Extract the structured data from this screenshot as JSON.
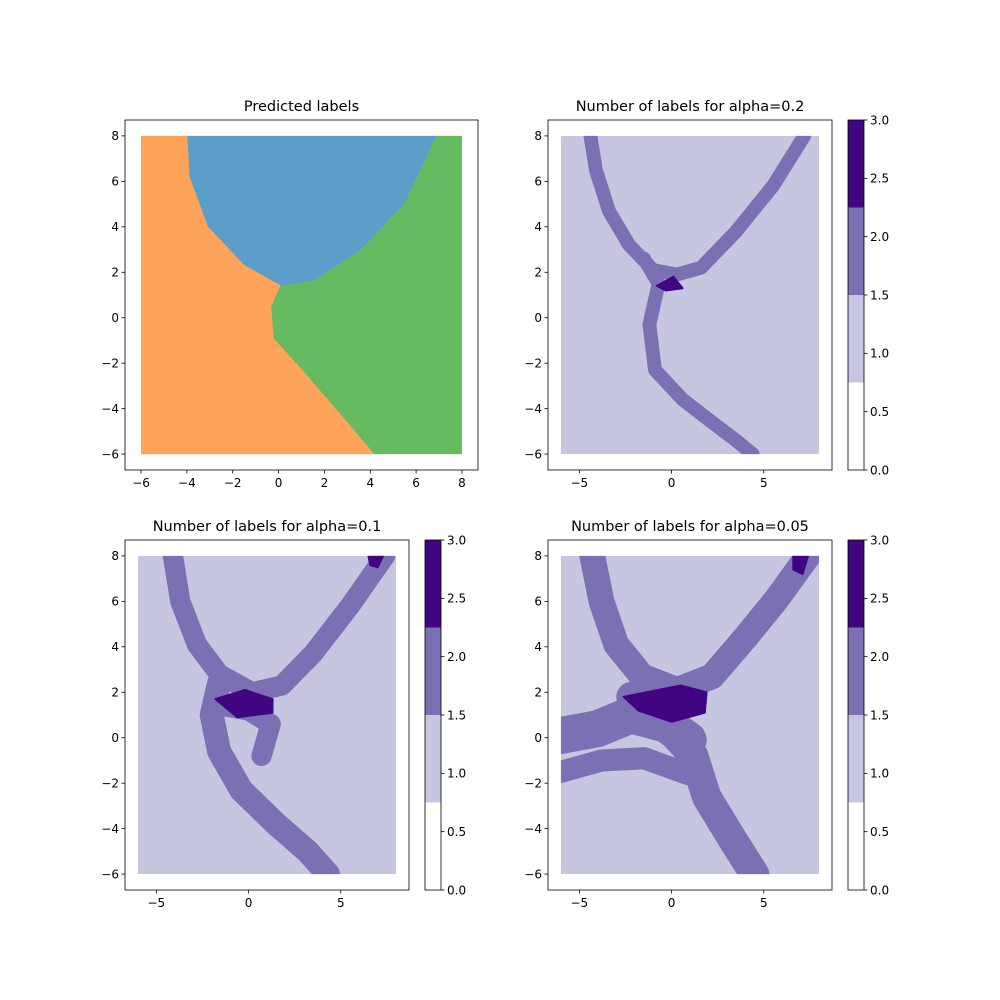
{
  "figure": {
    "background": "#ffffff"
  },
  "chart_data": [
    {
      "type": "heatmap",
      "title": "Predicted labels",
      "xlim": [
        -6.7,
        8.7
      ],
      "ylim": [
        -6.7,
        8.7
      ],
      "xticks": [
        -6,
        -4,
        -2,
        0,
        2,
        4,
        6,
        8
      ],
      "yticks": [
        -6,
        -4,
        -2,
        0,
        2,
        4,
        6,
        8
      ],
      "grid": false,
      "legend": "none",
      "data_extent": {
        "x": [
          -6,
          8
        ],
        "y": [
          -6,
          8
        ]
      },
      "regions": [
        {
          "label": 0,
          "color": "#5b9ec9",
          "boundary": [
            [
              -4.0,
              8
            ],
            [
              -3.9,
              6.2
            ],
            [
              -3.1,
              4.0
            ],
            [
              -1.5,
              2.3
            ],
            [
              0.1,
              1.4
            ],
            [
              1.5,
              1.6
            ],
            [
              3.5,
              2.9
            ],
            [
              5.5,
              5.0
            ],
            [
              6.9,
              8
            ]
          ]
        },
        {
          "label": 1,
          "color": "#fda35a",
          "boundary": [
            [
              -6,
              -6
            ],
            [
              -6,
              8
            ],
            [
              -4.0,
              8
            ],
            [
              -3.9,
              6.2
            ],
            [
              -3.1,
              4.0
            ],
            [
              -1.5,
              2.3
            ],
            [
              0.1,
              1.4
            ],
            [
              -0.3,
              0.5
            ],
            [
              -0.2,
              -0.9
            ],
            [
              0.8,
              -2.0
            ],
            [
              2.6,
              -4.1
            ],
            [
              4.2,
              -6
            ]
          ]
        },
        {
          "label": 2,
          "color": "#66bb62",
          "boundary": [
            [
              8,
              8
            ],
            [
              8,
              -6
            ],
            [
              4.2,
              -6
            ],
            [
              2.6,
              -4.1
            ],
            [
              0.8,
              -2.0
            ],
            [
              -0.2,
              -0.9
            ],
            [
              -0.3,
              0.5
            ],
            [
              0.1,
              1.4
            ],
            [
              1.5,
              1.6
            ],
            [
              3.5,
              2.9
            ],
            [
              5.5,
              5.0
            ],
            [
              6.9,
              8
            ]
          ]
        }
      ]
    },
    {
      "type": "heatmap",
      "title": "Number of labels for alpha=0.2",
      "xlim": [
        -6.7,
        8.7
      ],
      "ylim": [
        -6.7,
        8.7
      ],
      "xticks": [
        -5,
        0,
        5
      ],
      "yticks": [
        -6,
        -4,
        -2,
        0,
        2,
        4,
        6,
        8
      ],
      "grid": false,
      "data_extent": {
        "x": [
          -6,
          8
        ],
        "y": [
          -6,
          8
        ]
      },
      "background_value": 1,
      "bands": [
        {
          "value": 2,
          "width": 0.75,
          "path": [
            [
              -4.4,
              8
            ],
            [
              -4.1,
              6.5
            ],
            [
              -3.4,
              4.7
            ],
            [
              -2.3,
              3.2
            ],
            [
              -1.0,
              2.1
            ],
            [
              0.3,
              1.9
            ],
            [
              1.6,
              2.2
            ],
            [
              3.5,
              3.8
            ],
            [
              5.5,
              5.8
            ],
            [
              7.2,
              8
            ]
          ]
        },
        {
          "value": 2,
          "width": 0.75,
          "path": [
            [
              -1.5,
              2.6
            ],
            [
              -0.7,
              1.5
            ],
            [
              -1.2,
              -0.3
            ],
            [
              -0.9,
              -2.3
            ],
            [
              0.6,
              -3.6
            ],
            [
              2.2,
              -4.6
            ],
            [
              3.5,
              -5.4
            ],
            [
              4.4,
              -6
            ]
          ]
        }
      ],
      "spots": [
        {
          "value": 3,
          "polygon": [
            [
              -0.8,
              1.4
            ],
            [
              0.1,
              1.8
            ],
            [
              0.6,
              1.3
            ],
            [
              -0.3,
              1.2
            ]
          ]
        }
      ],
      "colorbar": {
        "ticks": [
          0.0,
          0.5,
          1.0,
          1.5,
          2.0,
          2.5,
          3.0
        ],
        "tick_labels": [
          "0.0",
          "0.5",
          "1.0",
          "1.5",
          "2.0",
          "2.5",
          "3.0"
        ],
        "levels": [
          {
            "range": [
              0,
              0.75
            ],
            "value": 0,
            "color": "#ffffff"
          },
          {
            "range": [
              0.75,
              1.5
            ],
            "value": 1,
            "color": "#c6c6e1"
          },
          {
            "range": [
              1.5,
              2.25
            ],
            "value": 2,
            "color": "#7b70b3"
          },
          {
            "range": [
              2.25,
              3.0
            ],
            "value": 3,
            "color": "#410582"
          }
        ]
      }
    },
    {
      "type": "heatmap",
      "title": "Number of labels for alpha=0.1",
      "xlim": [
        -6.7,
        8.7
      ],
      "ylim": [
        -6.7,
        8.7
      ],
      "xticks": [
        -5,
        0,
        5
      ],
      "yticks": [
        -6,
        -4,
        -2,
        0,
        2,
        4,
        6,
        8
      ],
      "grid": false,
      "data_extent": {
        "x": [
          -6,
          8
        ],
        "y": [
          -6,
          8
        ]
      },
      "background_value": 1,
      "bands": [
        {
          "value": 2,
          "width": 1.1,
          "path": [
            [
              -4.1,
              8
            ],
            [
              -3.7,
              6.0
            ],
            [
              -2.8,
              4.1
            ],
            [
              -1.6,
              2.8
            ],
            [
              0.2,
              2.0
            ],
            [
              1.8,
              2.3
            ],
            [
              3.5,
              3.7
            ],
            [
              5.5,
              5.8
            ],
            [
              7.4,
              8
            ]
          ]
        },
        {
          "value": 2,
          "width": 1.3,
          "path": [
            [
              -1.6,
              2.4
            ],
            [
              -2.0,
              1.0
            ],
            [
              -1.6,
              -0.6
            ],
            [
              -0.4,
              -2.3
            ],
            [
              1.5,
              -3.8
            ],
            [
              3.2,
              -5.0
            ],
            [
              4.3,
              -6
            ]
          ]
        },
        {
          "value": 2,
          "width": 1.1,
          "path": [
            [
              -1.4,
              1.4
            ],
            [
              0.0,
              1.2
            ],
            [
              1.2,
              0.6
            ],
            [
              0.7,
              -0.8
            ]
          ]
        }
      ],
      "spots": [
        {
          "value": 3,
          "polygon": [
            [
              -1.8,
              1.7
            ],
            [
              -0.2,
              2.1
            ],
            [
              1.3,
              1.7
            ],
            [
              1.3,
              1.1
            ],
            [
              -0.6,
              0.9
            ]
          ]
        },
        {
          "value": 3,
          "polygon": [
            [
              6.5,
              8
            ],
            [
              7.3,
              8
            ],
            [
              7.0,
              7.5
            ],
            [
              6.6,
              7.6
            ]
          ]
        }
      ],
      "colorbar": {
        "ticks": [
          0.0,
          0.5,
          1.0,
          1.5,
          2.0,
          2.5,
          3.0
        ],
        "tick_labels": [
          "0.0",
          "0.5",
          "1.0",
          "1.5",
          "2.0",
          "2.5",
          "3.0"
        ],
        "levels": [
          {
            "range": [
              0,
              0.75
            ],
            "value": 0,
            "color": "#ffffff"
          },
          {
            "range": [
              0.75,
              1.5
            ],
            "value": 1,
            "color": "#c6c6e1"
          },
          {
            "range": [
              1.5,
              2.25
            ],
            "value": 2,
            "color": "#7b70b3"
          },
          {
            "range": [
              2.25,
              3.0
            ],
            "value": 3,
            "color": "#410582"
          }
        ]
      }
    },
    {
      "type": "heatmap",
      "title": "Number of labels for alpha=0.05",
      "xlim": [
        -6.7,
        8.7
      ],
      "ylim": [
        -6.7,
        8.7
      ],
      "xticks": [
        -5,
        0,
        5
      ],
      "yticks": [
        -6,
        -4,
        -2,
        0,
        2,
        4,
        6,
        8
      ],
      "grid": false,
      "data_extent": {
        "x": [
          -6,
          8
        ],
        "y": [
          -6,
          8
        ]
      },
      "background_value": 1,
      "bands": [
        {
          "value": 2,
          "width": 1.4,
          "path": [
            [
              -4.3,
              8
            ],
            [
              -3.8,
              6.0
            ],
            [
              -3.0,
              4.1
            ],
            [
              -1.6,
              2.7
            ],
            [
              0.3,
              2.1
            ],
            [
              2.2,
              2.7
            ],
            [
              4.0,
              4.4
            ],
            [
              5.7,
              6.1
            ],
            [
              7.4,
              8
            ]
          ]
        },
        {
          "value": 2,
          "width": 1.6,
          "path": [
            [
              -2.2,
              1.8
            ],
            [
              -0.5,
              0.7
            ],
            [
              1.2,
              -0.8
            ],
            [
              1.9,
              -2.6
            ],
            [
              3.4,
              -4.6
            ],
            [
              4.5,
              -6
            ]
          ]
        },
        {
          "value": 2,
          "width": 2.0,
          "path": [
            [
              -6,
              0.1
            ],
            [
              -4.0,
              0.4
            ],
            [
              -2.2,
              1.0
            ],
            [
              -0.3,
              0.6
            ],
            [
              0.9,
              -0.1
            ]
          ]
        },
        {
          "value": 2,
          "width": 1.2,
          "path": [
            [
              -6,
              -1.5
            ],
            [
              -3.8,
              -1.0
            ],
            [
              -1.5,
              -0.9
            ],
            [
              0.9,
              -1.6
            ]
          ]
        }
      ],
      "spots": [
        {
          "value": 3,
          "polygon": [
            [
              -2.6,
              1.8
            ],
            [
              0.5,
              2.3
            ],
            [
              1.9,
              2.0
            ],
            [
              1.8,
              1.1
            ],
            [
              0.0,
              0.7
            ],
            [
              -1.8,
              1.2
            ]
          ]
        },
        {
          "value": 3,
          "polygon": [
            [
              6.6,
              8
            ],
            [
              7.4,
              8
            ],
            [
              7.1,
              7.2
            ],
            [
              6.6,
              7.4
            ]
          ]
        }
      ],
      "colorbar": {
        "ticks": [
          0.0,
          0.5,
          1.0,
          1.5,
          2.0,
          2.5,
          3.0
        ],
        "tick_labels": [
          "0.0",
          "0.5",
          "1.0",
          "1.5",
          "2.0",
          "2.5",
          "3.0"
        ],
        "levels": [
          {
            "range": [
              0,
              0.75
            ],
            "value": 0,
            "color": "#ffffff"
          },
          {
            "range": [
              0.75,
              1.5
            ],
            "value": 1,
            "color": "#c6c6e1"
          },
          {
            "range": [
              1.5,
              2.25
            ],
            "value": 2,
            "color": "#7b70b3"
          },
          {
            "range": [
              2.25,
              3.0
            ],
            "value": 3,
            "color": "#410582"
          }
        ]
      }
    }
  ]
}
